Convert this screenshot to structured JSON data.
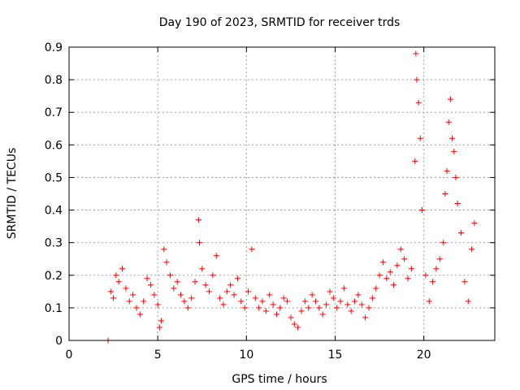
{
  "chart_data": {
    "type": "scatter",
    "title": "Day 190 of 2023, SRMTID for receiver trds",
    "xlabel": "GPS time / hours",
    "ylabel": "SRMTID / TECUs",
    "xlim": [
      0,
      24
    ],
    "ylim": [
      0,
      0.9
    ],
    "xticks": [
      0,
      5,
      10,
      15,
      20
    ],
    "yticks": [
      0,
      0.1,
      0.2,
      0.3,
      0.4,
      0.5,
      0.6,
      0.7,
      0.8,
      0.9
    ],
    "grid": true,
    "marker": "+",
    "color": "#ff0000",
    "series": [
      {
        "name": "SRMTID",
        "x": [
          2.2,
          2.35,
          2.5,
          2.65,
          2.8,
          3.0,
          3.2,
          3.4,
          3.6,
          3.8,
          4.0,
          4.2,
          4.4,
          4.6,
          4.8,
          5.0,
          5.1,
          5.2,
          5.35,
          5.5,
          5.7,
          5.9,
          6.1,
          6.3,
          6.5,
          6.7,
          6.9,
          7.1,
          7.3,
          7.35,
          7.5,
          7.7,
          7.9,
          8.1,
          8.3,
          8.5,
          8.7,
          8.9,
          9.1,
          9.3,
          9.5,
          9.7,
          9.9,
          10.1,
          10.3,
          10.5,
          10.7,
          10.9,
          11.1,
          11.3,
          11.5,
          11.7,
          11.9,
          12.1,
          12.3,
          12.5,
          12.7,
          12.9,
          13.1,
          13.3,
          13.5,
          13.7,
          13.9,
          14.1,
          14.3,
          14.5,
          14.7,
          14.9,
          15.1,
          15.3,
          15.5,
          15.7,
          15.9,
          16.1,
          16.3,
          16.5,
          16.7,
          16.9,
          17.1,
          17.3,
          17.5,
          17.7,
          17.9,
          18.1,
          18.3,
          18.5,
          18.7,
          18.9,
          19.1,
          19.3,
          19.5,
          19.55,
          19.6,
          19.7,
          19.8,
          19.9,
          20.1,
          20.3,
          20.5,
          20.7,
          20.9,
          21.1,
          21.2,
          21.3,
          21.4,
          21.5,
          21.6,
          21.7,
          21.8,
          21.9,
          22.1,
          22.3,
          22.5,
          22.7,
          22.85
        ],
        "y": [
          0.0,
          0.15,
          0.13,
          0.2,
          0.18,
          0.22,
          0.16,
          0.12,
          0.14,
          0.1,
          0.08,
          0.12,
          0.19,
          0.17,
          0.14,
          0.11,
          0.04,
          0.06,
          0.28,
          0.24,
          0.2,
          0.16,
          0.18,
          0.14,
          0.12,
          0.1,
          0.13,
          0.18,
          0.37,
          0.3,
          0.22,
          0.17,
          0.15,
          0.2,
          0.26,
          0.13,
          0.11,
          0.15,
          0.17,
          0.14,
          0.19,
          0.12,
          0.1,
          0.15,
          0.28,
          0.13,
          0.1,
          0.12,
          0.09,
          0.14,
          0.11,
          0.08,
          0.1,
          0.13,
          0.12,
          0.07,
          0.05,
          0.04,
          0.09,
          0.12,
          0.1,
          0.14,
          0.12,
          0.1,
          0.08,
          0.11,
          0.15,
          0.13,
          0.1,
          0.12,
          0.16,
          0.11,
          0.09,
          0.12,
          0.14,
          0.11,
          0.07,
          0.1,
          0.13,
          0.16,
          0.2,
          0.24,
          0.19,
          0.21,
          0.17,
          0.23,
          0.28,
          0.25,
          0.19,
          0.22,
          0.55,
          0.88,
          0.8,
          0.73,
          0.62,
          0.4,
          0.2,
          0.12,
          0.18,
          0.22,
          0.25,
          0.3,
          0.45,
          0.52,
          0.67,
          0.74,
          0.62,
          0.58,
          0.5,
          0.42,
          0.33,
          0.18,
          0.12,
          0.28,
          0.36
        ]
      }
    ]
  }
}
